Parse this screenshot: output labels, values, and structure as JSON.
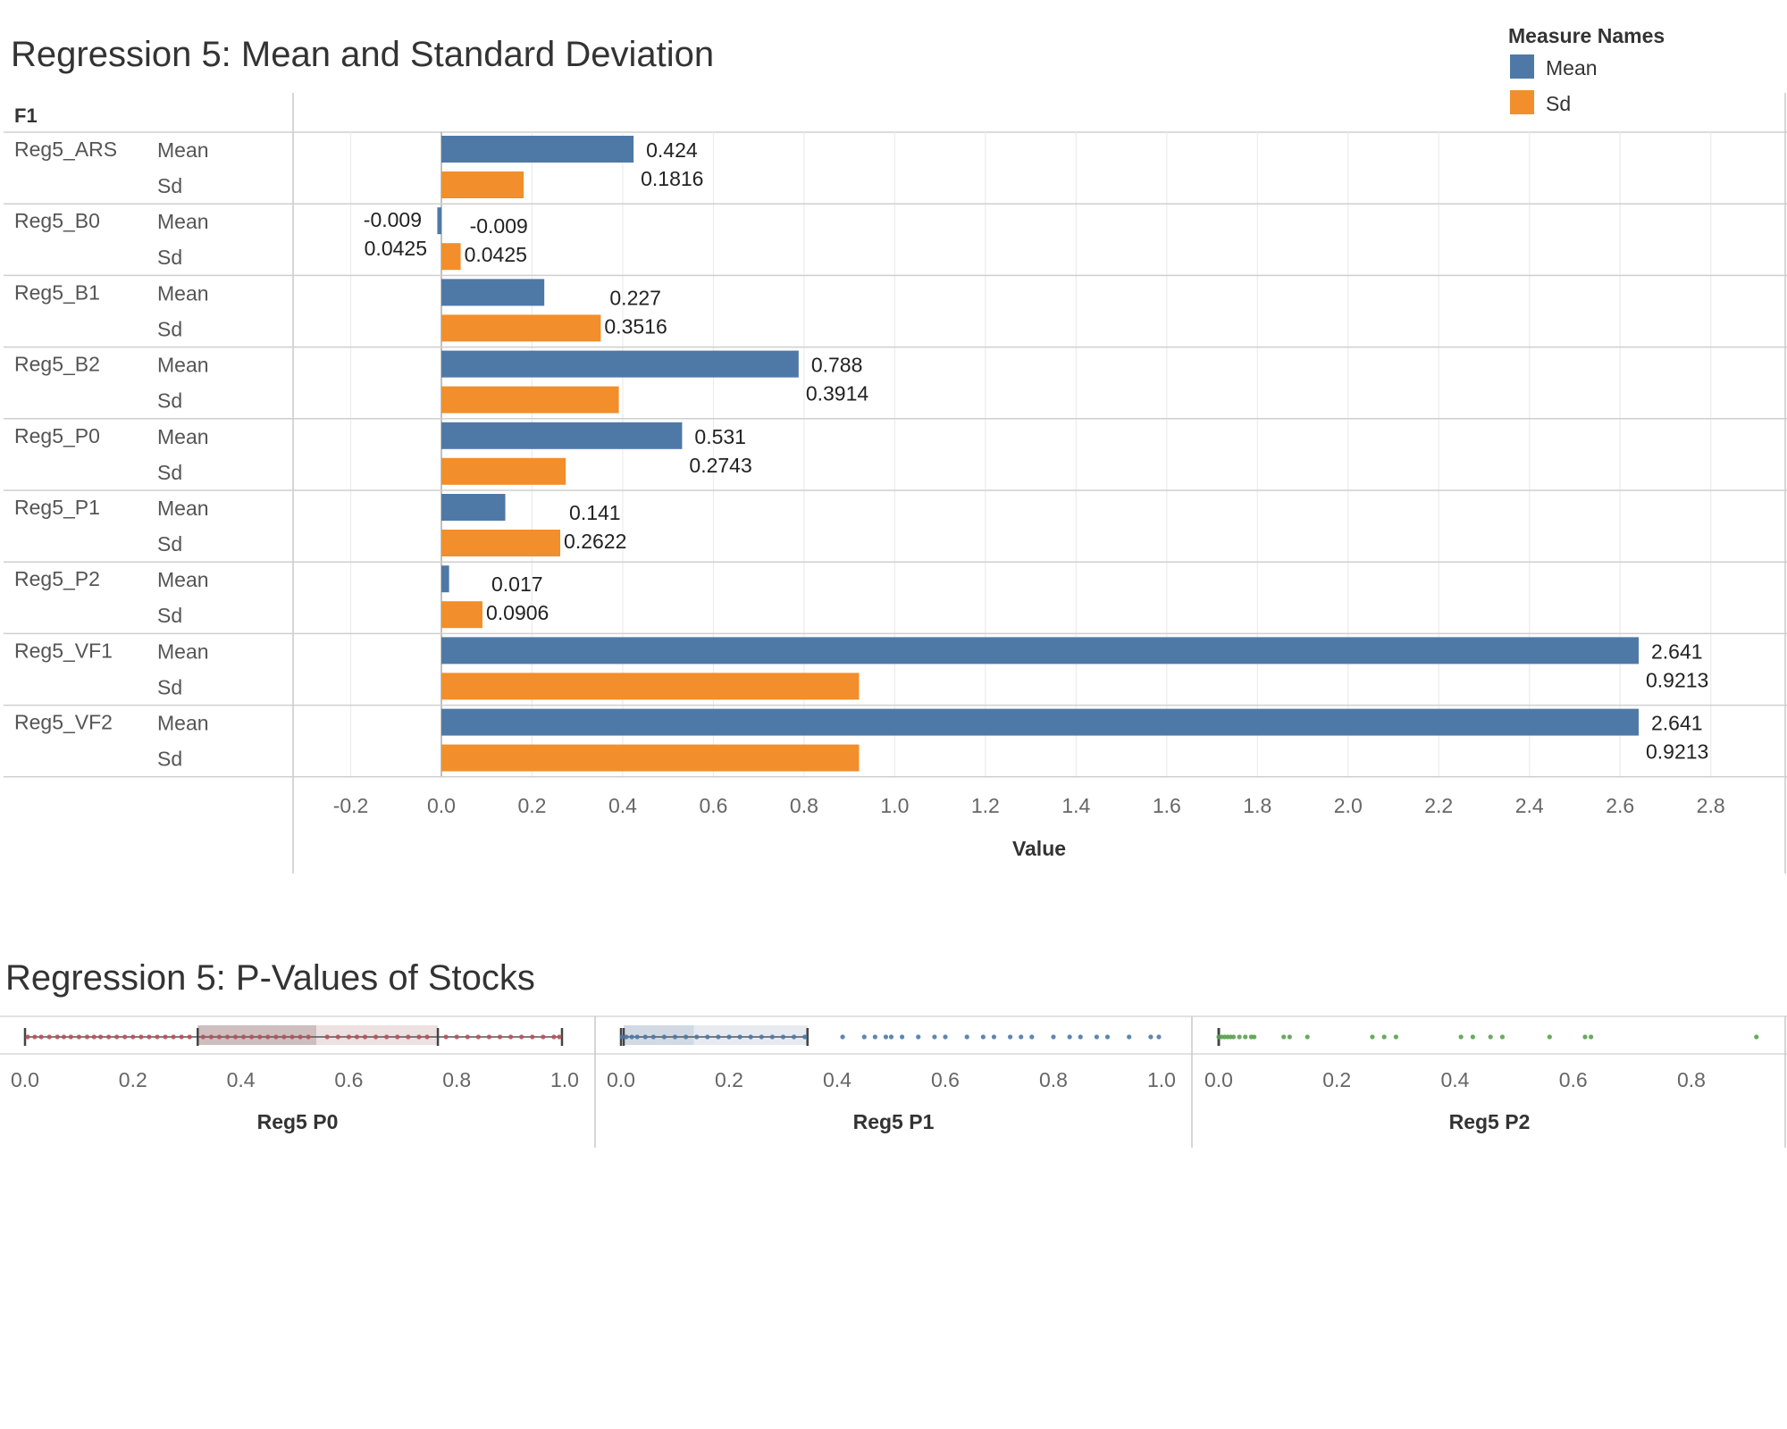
{
  "chart_data": [
    {
      "type": "bar",
      "orientation": "horizontal",
      "title": "Regression 5: Mean and Standard Deviation",
      "row_header": "F1",
      "xlabel": "Value",
      "xlim": [
        -0.3,
        2.95
      ],
      "x_ticks": [
        "-0.2",
        "0.0",
        "0.2",
        "0.4",
        "0.6",
        "0.8",
        "1.0",
        "1.2",
        "1.4",
        "1.6",
        "1.8",
        "2.0",
        "2.2",
        "2.4",
        "2.6",
        "2.8"
      ],
      "grid": true,
      "legend": {
        "title": "Measure Names",
        "placement": "top-right",
        "entries": [
          {
            "name": "Mean",
            "color": "#4e79a7"
          },
          {
            "name": "Sd",
            "color": "#f28e2b"
          }
        ]
      },
      "categories": [
        "Reg5_ARS",
        "Reg5_B0",
        "Reg5_B1",
        "Reg5_B2",
        "Reg5_P0",
        "Reg5_P1",
        "Reg5_P2",
        "Reg5_VF1",
        "Reg5_VF2"
      ],
      "series": [
        {
          "name": "Mean",
          "color": "#4e79a7",
          "values": [
            0.424,
            -0.009,
            0.227,
            0.788,
            0.531,
            0.141,
            0.017,
            2.641,
            2.641
          ],
          "labels": [
            "0.424",
            "-0.009",
            "0.227",
            "0.788",
            "0.531",
            "0.141",
            "0.017",
            "2.641",
            "2.641"
          ]
        },
        {
          "name": "Sd",
          "color": "#f28e2b",
          "values": [
            0.1816,
            0.0425,
            0.3516,
            0.3914,
            0.2743,
            0.2622,
            0.0906,
            0.9213,
            0.9213
          ],
          "labels": [
            "0.1816",
            "0.0425",
            "0.3516",
            "0.3914",
            "0.2743",
            "0.2622",
            "0.0906",
            "0.9213",
            "0.9213"
          ]
        }
      ],
      "cell_labels": {
        "Reg5_B0": [
          "-0.009",
          "0.0425"
        ]
      }
    },
    {
      "type": "scatter",
      "title": "Regression 5: P-Values of Stocks",
      "panels": [
        {
          "xlabel": "Reg5 P0",
          "xlim": [
            0,
            1
          ],
          "x_ticks": [
            "0.0",
            "0.2",
            "0.4",
            "0.6",
            "0.8",
            "1.0"
          ],
          "color": "#b5535b",
          "box": {
            "min": 0.0,
            "q1": 0.32,
            "median": 0.54,
            "q3": 0.765,
            "max": 0.995
          },
          "values": [
            0.005,
            0.018,
            0.03,
            0.045,
            0.06,
            0.072,
            0.085,
            0.1,
            0.115,
            0.128,
            0.14,
            0.155,
            0.17,
            0.185,
            0.2,
            0.215,
            0.23,
            0.245,
            0.26,
            0.275,
            0.29,
            0.305,
            0.33,
            0.345,
            0.36,
            0.375,
            0.39,
            0.405,
            0.42,
            0.435,
            0.45,
            0.465,
            0.48,
            0.495,
            0.51,
            0.525,
            0.56,
            0.58,
            0.6,
            0.615,
            0.63,
            0.65,
            0.67,
            0.69,
            0.71,
            0.73,
            0.745,
            0.78,
            0.8,
            0.82,
            0.84,
            0.86,
            0.88,
            0.9,
            0.92,
            0.94,
            0.96,
            0.98,
            0.99
          ]
        },
        {
          "xlabel": "Reg5 P1",
          "xlim": [
            0,
            1
          ],
          "x_ticks": [
            "0.0",
            "0.2",
            "0.4",
            "0.6",
            "0.8",
            "1.0"
          ],
          "color": "#4e79a7",
          "box": {
            "min": 0.0,
            "q1": 0.005,
            "median": 0.135,
            "q3": 0.345,
            "max": 0.345
          },
          "values": [
            0.002,
            0.01,
            0.02,
            0.03,
            0.045,
            0.06,
            0.08,
            0.1,
            0.12,
            0.14,
            0.16,
            0.18,
            0.2,
            0.22,
            0.24,
            0.26,
            0.28,
            0.3,
            0.32,
            0.34,
            0.41,
            0.45,
            0.47,
            0.49,
            0.5,
            0.52,
            0.55,
            0.58,
            0.6,
            0.64,
            0.67,
            0.69,
            0.72,
            0.74,
            0.76,
            0.8,
            0.83,
            0.85,
            0.88,
            0.9,
            0.94,
            0.98,
            0.995
          ]
        },
        {
          "xlabel": "Reg5 P2",
          "xlim": [
            0,
            0.95
          ],
          "x_ticks": [
            "0.0",
            "0.2",
            "0.4",
            "0.6",
            "0.8"
          ],
          "color": "#59a14f",
          "box": {
            "min": 0.0,
            "q1": 0.0,
            "median": 0.0,
            "q3": 0.0,
            "max": 0.0
          },
          "values": [
            0.0,
            0.005,
            0.01,
            0.015,
            0.02,
            0.025,
            0.035,
            0.045,
            0.055,
            0.06,
            0.11,
            0.12,
            0.15,
            0.26,
            0.28,
            0.3,
            0.41,
            0.43,
            0.46,
            0.48,
            0.56,
            0.62,
            0.63,
            0.91
          ]
        }
      ]
    }
  ]
}
